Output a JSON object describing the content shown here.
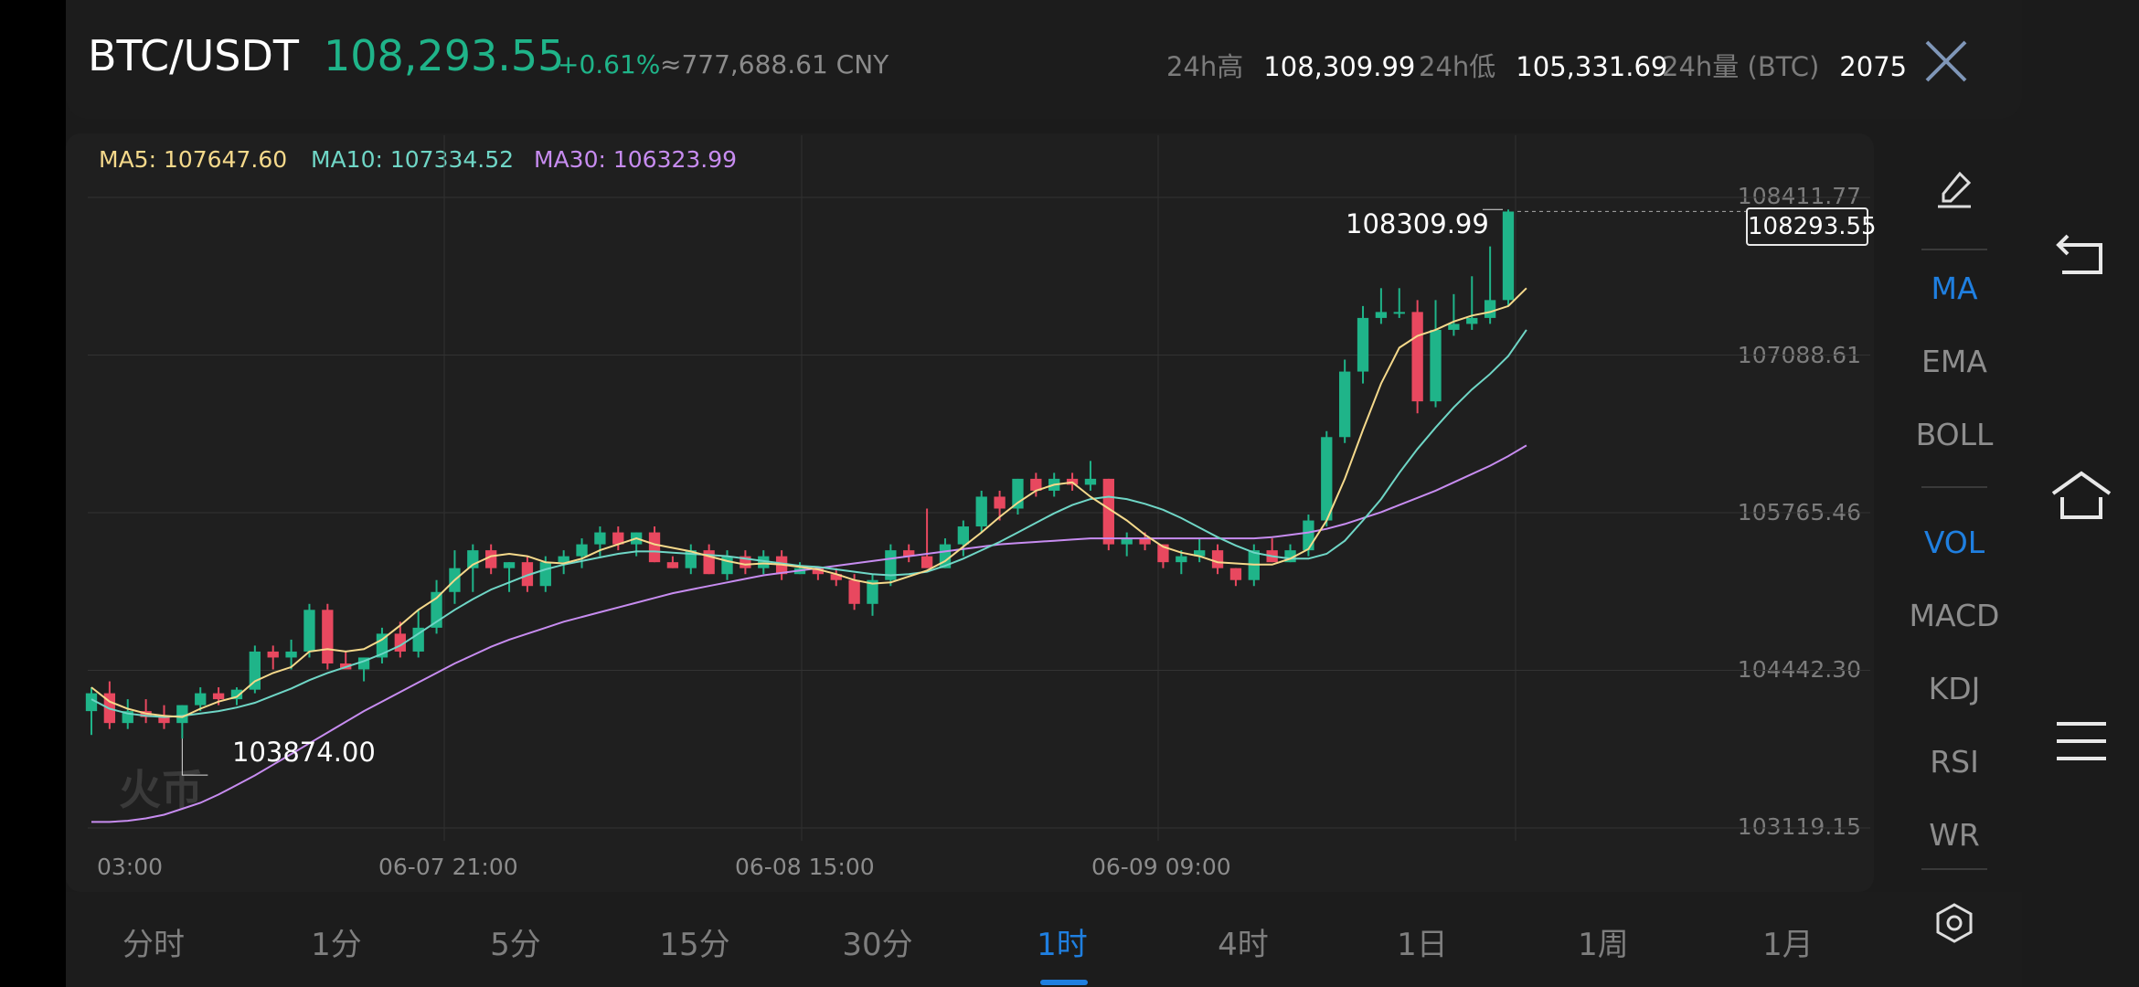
{
  "header": {
    "symbol": "BTC/USDT",
    "price": "108,293.55",
    "change": "+0.61%",
    "cny": "≈777,688.61 CNY",
    "stats": [
      {
        "label": "24h高",
        "value": "108,309.99"
      },
      {
        "label": "24h低",
        "value": "105,331.69"
      },
      {
        "label": "24h量 (BTC)",
        "value": "2075"
      }
    ]
  },
  "ma_legend": [
    {
      "label": "MA5: 107647.60",
      "color": "#f5d98b"
    },
    {
      "label": "MA10: 107334.52",
      "color": "#6fd6c6"
    },
    {
      "label": "MA30: 106323.99",
      "color": "#c78cf0"
    }
  ],
  "chart_data": {
    "type": "candlestick",
    "interval": "1时",
    "y_ticks": [
      "108411.77",
      "107088.61",
      "105765.46",
      "104442.30",
      "103119.15"
    ],
    "x_ticks": [
      "03:00",
      "06-07 21:00",
      "06-08 15:00",
      "06-09 09:00"
    ],
    "ylim": [
      103119.15,
      108411.77
    ],
    "current_price": "108293.55",
    "high_marker": "108309.99",
    "low_marker": "103874.00",
    "candles": [
      [
        104100,
        104300,
        103900,
        104250
      ],
      [
        104250,
        104350,
        103950,
        104000
      ],
      [
        104000,
        104200,
        103950,
        104100
      ],
      [
        104100,
        104200,
        104000,
        104050
      ],
      [
        104050,
        104150,
        103950,
        104000
      ],
      [
        104000,
        104150,
        103870,
        104150
      ],
      [
        104150,
        104300,
        104100,
        104250
      ],
      [
        104250,
        104300,
        104150,
        104200
      ],
      [
        104200,
        104300,
        104150,
        104280
      ],
      [
        104280,
        104650,
        104250,
        104600
      ],
      [
        104600,
        104650,
        104450,
        104550
      ],
      [
        104550,
        104700,
        104450,
        104600
      ],
      [
        104600,
        105000,
        104550,
        104950
      ],
      [
        104950,
        105000,
        104450,
        104500
      ],
      [
        104500,
        104600,
        104450,
        104450
      ],
      [
        104450,
        104550,
        104350,
        104550
      ],
      [
        104550,
        104800,
        104500,
        104750
      ],
      [
        104750,
        104850,
        104550,
        104600
      ],
      [
        104600,
        104950,
        104550,
        104800
      ],
      [
        104800,
        105200,
        104750,
        105100
      ],
      [
        105100,
        105450,
        105000,
        105300
      ],
      [
        105300,
        105500,
        105100,
        105450
      ],
      [
        105450,
        105500,
        105250,
        105300
      ],
      [
        105300,
        105350,
        105100,
        105350
      ],
      [
        105350,
        105400,
        105100,
        105150
      ],
      [
        105150,
        105400,
        105100,
        105350
      ],
      [
        105350,
        105450,
        105250,
        105400
      ],
      [
        105400,
        105550,
        105300,
        105500
      ],
      [
        105500,
        105650,
        105400,
        105600
      ],
      [
        105600,
        105650,
        105450,
        105500
      ],
      [
        105500,
        105600,
        105400,
        105600
      ],
      [
        105600,
        105650,
        105350,
        105350
      ],
      [
        105350,
        105400,
        105300,
        105300
      ],
      [
        105300,
        105500,
        105250,
        105450
      ],
      [
        105450,
        105500,
        105250,
        105250
      ],
      [
        105250,
        105450,
        105200,
        105400
      ],
      [
        105400,
        105450,
        105250,
        105300
      ],
      [
        105300,
        105450,
        105250,
        105400
      ],
      [
        105400,
        105450,
        105200,
        105250
      ],
      [
        105250,
        105350,
        105250,
        105300
      ],
      [
        105300,
        105300,
        105200,
        105250
      ],
      [
        105250,
        105300,
        105150,
        105200
      ],
      [
        105200,
        105250,
        104950,
        105000
      ],
      [
        105000,
        105250,
        104900,
        105200
      ],
      [
        105200,
        105500,
        105150,
        105450
      ],
      [
        105450,
        105500,
        105350,
        105400
      ],
      [
        105400,
        105800,
        105300,
        105300
      ],
      [
        105300,
        105550,
        105300,
        105500
      ],
      [
        105500,
        105700,
        105400,
        105650
      ],
      [
        105650,
        105950,
        105600,
        105900
      ],
      [
        105900,
        105950,
        105700,
        105800
      ],
      [
        105800,
        106050,
        105750,
        106050
      ],
      [
        106050,
        106100,
        105900,
        105950
      ],
      [
        105950,
        106100,
        105900,
        106050
      ],
      [
        106050,
        106100,
        105950,
        106000
      ],
      [
        106000,
        106200,
        105950,
        106050
      ],
      [
        106050,
        106050,
        105450,
        105500
      ],
      [
        105500,
        105600,
        105400,
        105550
      ],
      [
        105550,
        105600,
        105450,
        105500
      ],
      [
        105500,
        105500,
        105300,
        105350
      ],
      [
        105350,
        105450,
        105250,
        105400
      ],
      [
        105400,
        105550,
        105350,
        105450
      ],
      [
        105450,
        105500,
        105250,
        105300
      ],
      [
        105300,
        105300,
        105150,
        105200
      ],
      [
        105200,
        105500,
        105150,
        105450
      ],
      [
        105450,
        105550,
        105350,
        105350
      ],
      [
        105350,
        105500,
        105350,
        105450
      ],
      [
        105450,
        105750,
        105400,
        105700
      ],
      [
        105700,
        106450,
        105650,
        106400
      ],
      [
        106400,
        107050,
        106350,
        106950
      ],
      [
        106950,
        107500,
        106850,
        107400
      ],
      [
        107400,
        107650,
        107350,
        107450
      ],
      [
        107450,
        107650,
        107400,
        107450
      ],
      [
        107450,
        107550,
        106600,
        106700
      ],
      [
        106700,
        107550,
        106650,
        107300
      ],
      [
        107300,
        107600,
        107250,
        107350
      ],
      [
        107350,
        107750,
        107300,
        107400
      ],
      [
        107400,
        108000,
        107350,
        107550
      ],
      [
        107550,
        108310,
        107500,
        108293
      ]
    ],
    "ma5": [
      104300,
      104180,
      104120,
      104080,
      104060,
      104050,
      104120,
      104180,
      104220,
      104350,
      104420,
      104470,
      104600,
      104620,
      104600,
      104620,
      104700,
      104820,
      104950,
      105050,
      105200,
      105330,
      105400,
      105420,
      105400,
      105350,
      105340,
      105380,
      105450,
      105500,
      105550,
      105500,
      105470,
      105440,
      105400,
      105360,
      105330,
      105340,
      105330,
      105310,
      105290,
      105250,
      105200,
      105170,
      105180,
      105230,
      105280,
      105360,
      105480,
      105600,
      105730,
      105850,
      105950,
      106000,
      106020,
      105900,
      105800,
      105700,
      105580,
      105480,
      105430,
      105400,
      105350,
      105340,
      105330,
      105330,
      105380,
      105460,
      105700,
      106050,
      106460,
      106850,
      107150,
      107250,
      107300,
      107370,
      107420,
      107450,
      107500,
      107650
    ],
    "ma10": [
      104200,
      104120,
      104080,
      104060,
      104050,
      104060,
      104080,
      104100,
      104130,
      104170,
      104230,
      104290,
      104360,
      104420,
      104470,
      104520,
      104580,
      104650,
      104750,
      104850,
      104950,
      105040,
      105120,
      105180,
      105240,
      105290,
      105330,
      105360,
      105390,
      105420,
      105440,
      105440,
      105430,
      105420,
      105410,
      105400,
      105380,
      105360,
      105340,
      105320,
      105310,
      105290,
      105270,
      105250,
      105240,
      105250,
      105270,
      105320,
      105380,
      105450,
      105520,
      105600,
      105680,
      105760,
      105830,
      105880,
      105900,
      105880,
      105840,
      105790,
      105720,
      105640,
      105560,
      105490,
      105430,
      105400,
      105380,
      105380,
      105420,
      105530,
      105700,
      105880,
      106100,
      106300,
      106480,
      106650,
      106800,
      106930,
      107080,
      107300
    ],
    "ma30": [
      103170,
      103170,
      103180,
      103200,
      103230,
      103280,
      103330,
      103400,
      103480,
      103560,
      103650,
      103740,
      103830,
      103920,
      104010,
      104100,
      104180,
      104260,
      104340,
      104420,
      104500,
      104570,
      104640,
      104700,
      104750,
      104800,
      104850,
      104890,
      104930,
      104970,
      105010,
      105050,
      105090,
      105120,
      105150,
      105180,
      105210,
      105240,
      105260,
      105280,
      105300,
      105320,
      105340,
      105360,
      105380,
      105400,
      105420,
      105440,
      105460,
      105480,
      105500,
      105510,
      105520,
      105530,
      105540,
      105550,
      105550,
      105550,
      105550,
      105550,
      105550,
      105550,
      105550,
      105550,
      105550,
      105560,
      105580,
      105600,
      105630,
      105670,
      105720,
      105770,
      105830,
      105890,
      105950,
      106020,
      106090,
      106160,
      106240,
      106330
    ]
  },
  "indicators": {
    "main": [
      "MA",
      "EMA",
      "BOLL"
    ],
    "sub": [
      "VOL",
      "MACD",
      "KDJ",
      "RSI",
      "WR"
    ],
    "active_main": "MA",
    "active_sub": "VOL"
  },
  "tabs": [
    "分时",
    "1分",
    "5分",
    "15分",
    "30分",
    "1时",
    "4时",
    "1日",
    "1周",
    "1月"
  ],
  "active_tab": "1时",
  "watermark": "火币",
  "colors": {
    "up": "#1fb489",
    "down": "#e8485f",
    "accent": "#1f7fe0"
  }
}
